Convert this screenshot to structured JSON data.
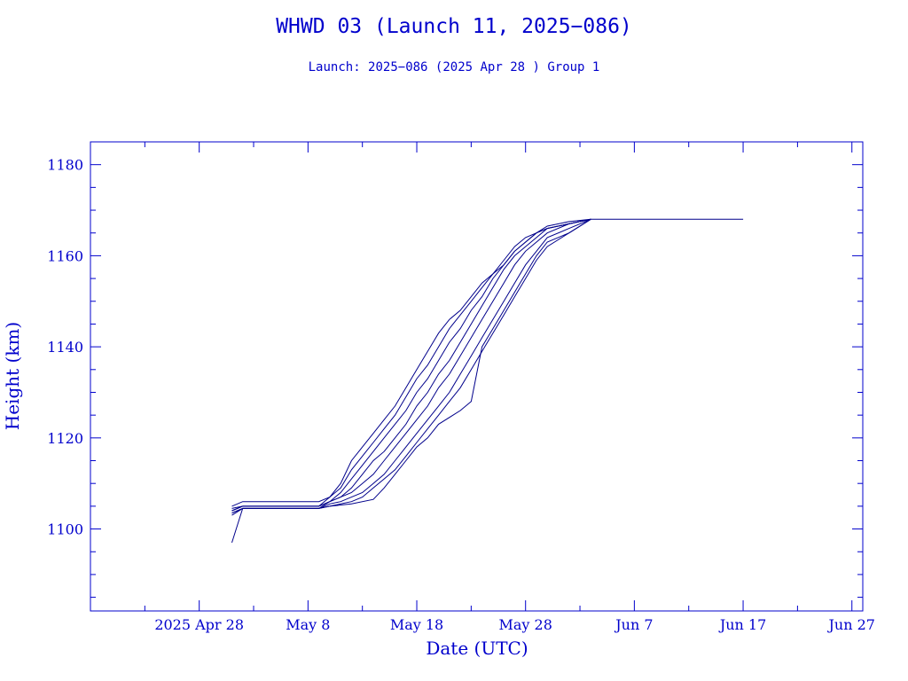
{
  "chart_data": {
    "type": "line",
    "title": "WHWD 03 (Launch 11, 2025−086)",
    "subtitle": "Launch: 2025−086  (2025 Apr 28 )  Group 1",
    "xlabel": "Date (UTC)",
    "ylabel": "Height (km)",
    "x_is_date": true,
    "xlim": [
      "2025-04-18",
      "2025-06-28"
    ],
    "ylim": [
      1082,
      1185
    ],
    "x_ticks": [
      {
        "date": "2025-04-28",
        "label": "2025 Apr 28"
      },
      {
        "date": "2025-05-08",
        "label": "May  8"
      },
      {
        "date": "2025-05-18",
        "label": "May 18"
      },
      {
        "date": "2025-05-28",
        "label": "May 28"
      },
      {
        "date": "2025-06-07",
        "label": "Jun  7"
      },
      {
        "date": "2025-06-17",
        "label": "Jun 17"
      },
      {
        "date": "2025-06-27",
        "label": "Jun 27"
      }
    ],
    "y_ticks": [
      1100,
      1120,
      1140,
      1160,
      1180
    ],
    "grid": false,
    "legend": "none",
    "colors": {
      "axis": "#0000cc",
      "series": "#00008b",
      "text": "#0000cc"
    },
    "series": [
      {
        "points": [
          [
            "2025-05-01",
            1104.5
          ],
          [
            "2025-05-02",
            1105
          ],
          [
            "2025-05-09",
            1105
          ],
          [
            "2025-05-10",
            1107
          ],
          [
            "2025-05-11",
            1110
          ],
          [
            "2025-05-12",
            1115
          ],
          [
            "2025-05-13",
            1118
          ],
          [
            "2025-05-14",
            1121
          ],
          [
            "2025-05-15",
            1124
          ],
          [
            "2025-05-16",
            1127
          ],
          [
            "2025-05-17",
            1131
          ],
          [
            "2025-05-18",
            1135
          ],
          [
            "2025-05-19",
            1139
          ],
          [
            "2025-05-20",
            1143
          ],
          [
            "2025-05-21",
            1146
          ],
          [
            "2025-05-22",
            1148
          ],
          [
            "2025-05-23",
            1151
          ],
          [
            "2025-05-24",
            1154
          ],
          [
            "2025-05-25",
            1156
          ],
          [
            "2025-05-26",
            1158
          ],
          [
            "2025-05-27",
            1161
          ],
          [
            "2025-05-28",
            1163
          ],
          [
            "2025-05-29",
            1165
          ],
          [
            "2025-05-30",
            1166
          ],
          [
            "2025-06-01",
            1167
          ],
          [
            "2025-06-03",
            1168
          ],
          [
            "2025-06-17",
            1168
          ]
        ]
      },
      {
        "points": [
          [
            "2025-05-01",
            1105
          ],
          [
            "2025-05-02",
            1106
          ],
          [
            "2025-05-09",
            1106
          ],
          [
            "2025-05-10",
            1107
          ],
          [
            "2025-05-11",
            1109
          ],
          [
            "2025-05-12",
            1113
          ],
          [
            "2025-05-13",
            1116
          ],
          [
            "2025-05-14",
            1119
          ],
          [
            "2025-05-15",
            1122
          ],
          [
            "2025-05-16",
            1125
          ],
          [
            "2025-05-17",
            1129
          ],
          [
            "2025-05-18",
            1133
          ],
          [
            "2025-05-19",
            1136
          ],
          [
            "2025-05-20",
            1140
          ],
          [
            "2025-05-21",
            1144
          ],
          [
            "2025-05-22",
            1147
          ],
          [
            "2025-05-23",
            1150
          ],
          [
            "2025-05-24",
            1153
          ],
          [
            "2025-05-25",
            1156
          ],
          [
            "2025-05-26",
            1159
          ],
          [
            "2025-05-27",
            1162
          ],
          [
            "2025-05-28",
            1164
          ],
          [
            "2025-05-29",
            1165
          ],
          [
            "2025-05-30",
            1166.5
          ],
          [
            "2025-06-01",
            1167.5
          ],
          [
            "2025-06-03",
            1168
          ]
        ]
      },
      {
        "points": [
          [
            "2025-05-01",
            1104
          ],
          [
            "2025-05-02",
            1105
          ],
          [
            "2025-05-09",
            1105
          ],
          [
            "2025-05-10",
            1106
          ],
          [
            "2025-05-11",
            1108
          ],
          [
            "2025-05-12",
            1111
          ],
          [
            "2025-05-13",
            1114
          ],
          [
            "2025-05-14",
            1117
          ],
          [
            "2025-05-15",
            1120
          ],
          [
            "2025-05-16",
            1123
          ],
          [
            "2025-05-17",
            1126
          ],
          [
            "2025-05-18",
            1130
          ],
          [
            "2025-05-19",
            1133
          ],
          [
            "2025-05-20",
            1137
          ],
          [
            "2025-05-21",
            1141
          ],
          [
            "2025-05-22",
            1144
          ],
          [
            "2025-05-23",
            1148
          ],
          [
            "2025-05-24",
            1151
          ],
          [
            "2025-05-25",
            1155
          ],
          [
            "2025-05-26",
            1158
          ],
          [
            "2025-05-27",
            1161
          ],
          [
            "2025-05-28",
            1163
          ],
          [
            "2025-05-29",
            1165
          ],
          [
            "2025-05-30",
            1166
          ],
          [
            "2025-06-01",
            1167
          ],
          [
            "2025-06-03",
            1168
          ]
        ]
      },
      {
        "points": [
          [
            "2025-05-01",
            1104
          ],
          [
            "2025-05-02",
            1105
          ],
          [
            "2025-05-09",
            1105
          ],
          [
            "2025-05-10",
            1106
          ],
          [
            "2025-05-11",
            1107
          ],
          [
            "2025-05-12",
            1109
          ],
          [
            "2025-05-13",
            1112
          ],
          [
            "2025-05-14",
            1115
          ],
          [
            "2025-05-15",
            1117
          ],
          [
            "2025-05-16",
            1120
          ],
          [
            "2025-05-17",
            1123
          ],
          [
            "2025-05-18",
            1127
          ],
          [
            "2025-05-19",
            1130
          ],
          [
            "2025-05-20",
            1134
          ],
          [
            "2025-05-21",
            1137
          ],
          [
            "2025-05-22",
            1141
          ],
          [
            "2025-05-23",
            1145
          ],
          [
            "2025-05-24",
            1149
          ],
          [
            "2025-05-25",
            1153
          ],
          [
            "2025-05-26",
            1157
          ],
          [
            "2025-05-27",
            1160
          ],
          [
            "2025-05-28",
            1162
          ],
          [
            "2025-05-29",
            1164
          ],
          [
            "2025-05-30",
            1166
          ],
          [
            "2025-06-01",
            1167
          ],
          [
            "2025-06-03",
            1168
          ]
        ]
      },
      {
        "points": [
          [
            "2025-05-01",
            1103.5
          ],
          [
            "2025-05-02",
            1104.5
          ],
          [
            "2025-05-09",
            1104.5
          ],
          [
            "2025-05-10",
            1106
          ],
          [
            "2025-05-11",
            1107
          ],
          [
            "2025-05-12",
            1108
          ],
          [
            "2025-05-13",
            1110
          ],
          [
            "2025-05-14",
            1112
          ],
          [
            "2025-05-15",
            1115
          ],
          [
            "2025-05-16",
            1118
          ],
          [
            "2025-05-17",
            1121
          ],
          [
            "2025-05-18",
            1124
          ],
          [
            "2025-05-19",
            1127
          ],
          [
            "2025-05-20",
            1131
          ],
          [
            "2025-05-21",
            1134
          ],
          [
            "2025-05-22",
            1138
          ],
          [
            "2025-05-23",
            1142
          ],
          [
            "2025-05-24",
            1146
          ],
          [
            "2025-05-25",
            1150
          ],
          [
            "2025-05-26",
            1154
          ],
          [
            "2025-05-27",
            1158
          ],
          [
            "2025-05-28",
            1161
          ],
          [
            "2025-05-29",
            1163
          ],
          [
            "2025-05-30",
            1165
          ],
          [
            "2025-06-01",
            1167
          ],
          [
            "2025-06-03",
            1168
          ]
        ]
      },
      {
        "points": [
          [
            "2025-05-01",
            1103.5
          ],
          [
            "2025-05-02",
            1104.5
          ],
          [
            "2025-05-09",
            1104.5
          ],
          [
            "2025-05-10",
            1105.5
          ],
          [
            "2025-05-11",
            1106
          ],
          [
            "2025-05-12",
            1107
          ],
          [
            "2025-05-13",
            1108
          ],
          [
            "2025-05-14",
            1110
          ],
          [
            "2025-05-15",
            1112
          ],
          [
            "2025-05-16",
            1115
          ],
          [
            "2025-05-17",
            1118
          ],
          [
            "2025-05-18",
            1121
          ],
          [
            "2025-05-19",
            1124
          ],
          [
            "2025-05-20",
            1127
          ],
          [
            "2025-05-21",
            1130
          ],
          [
            "2025-05-22",
            1134
          ],
          [
            "2025-05-23",
            1138
          ],
          [
            "2025-05-24",
            1142
          ],
          [
            "2025-05-25",
            1146
          ],
          [
            "2025-05-26",
            1150
          ],
          [
            "2025-05-27",
            1154
          ],
          [
            "2025-05-28",
            1158
          ],
          [
            "2025-05-29",
            1161
          ],
          [
            "2025-05-30",
            1164
          ],
          [
            "2025-06-01",
            1166
          ],
          [
            "2025-06-03",
            1168
          ]
        ]
      },
      {
        "points": [
          [
            "2025-05-01",
            1103
          ],
          [
            "2025-05-02",
            1104.5
          ],
          [
            "2025-05-09",
            1104.5
          ],
          [
            "2025-05-10",
            1105
          ],
          [
            "2025-05-11",
            1105.5
          ],
          [
            "2025-05-12",
            1106
          ],
          [
            "2025-05-13",
            1107
          ],
          [
            "2025-05-14",
            1109
          ],
          [
            "2025-05-15",
            1111
          ],
          [
            "2025-05-16",
            1113
          ],
          [
            "2025-05-17",
            1116
          ],
          [
            "2025-05-18",
            1119
          ],
          [
            "2025-05-19",
            1122
          ],
          [
            "2025-05-20",
            1125
          ],
          [
            "2025-05-21",
            1128
          ],
          [
            "2025-05-22",
            1131
          ],
          [
            "2025-05-23",
            1135
          ],
          [
            "2025-05-24",
            1139
          ],
          [
            "2025-05-25",
            1143
          ],
          [
            "2025-05-26",
            1147
          ],
          [
            "2025-05-27",
            1151
          ],
          [
            "2025-05-28",
            1155
          ],
          [
            "2025-05-29",
            1159
          ],
          [
            "2025-05-30",
            1162
          ],
          [
            "2025-06-01",
            1165
          ],
          [
            "2025-06-03",
            1168
          ]
        ]
      },
      {
        "points": [
          [
            "2025-05-01",
            1097
          ],
          [
            "2025-05-02",
            1104.5
          ],
          [
            "2025-05-09",
            1104.5
          ],
          [
            "2025-05-10",
            1105
          ],
          [
            "2025-05-12",
            1105.5
          ],
          [
            "2025-05-14",
            1106.5
          ],
          [
            "2025-05-15",
            1109
          ],
          [
            "2025-05-16",
            1112
          ],
          [
            "2025-05-17",
            1115
          ],
          [
            "2025-05-18",
            1118
          ],
          [
            "2025-05-19",
            1120
          ],
          [
            "2025-05-20",
            1123
          ],
          [
            "2025-05-22",
            1126
          ],
          [
            "2025-05-23",
            1128
          ],
          [
            "2025-05-24",
            1140
          ],
          [
            "2025-05-25",
            1144
          ],
          [
            "2025-05-26",
            1148
          ],
          [
            "2025-05-27",
            1152
          ],
          [
            "2025-05-28",
            1156
          ],
          [
            "2025-05-29",
            1160
          ],
          [
            "2025-05-30",
            1163
          ],
          [
            "2025-06-01",
            1165
          ],
          [
            "2025-06-03",
            1168
          ]
        ]
      }
    ]
  }
}
